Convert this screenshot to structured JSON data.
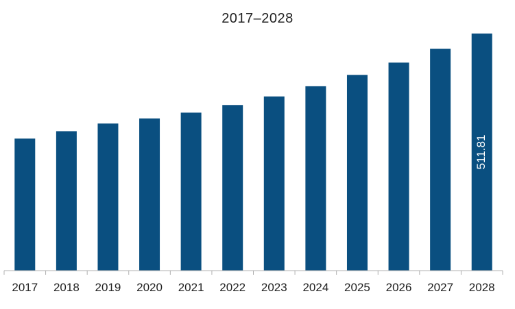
{
  "chart_data": {
    "type": "bar",
    "title": "2017–2028",
    "xlabel": "",
    "ylabel": "",
    "categories": [
      "2017",
      "2018",
      "2019",
      "2020",
      "2021",
      "2022",
      "2023",
      "2024",
      "2025",
      "2026",
      "2027",
      "2028"
    ],
    "values": [
      285.0,
      301.0,
      317.5,
      328.5,
      341.0,
      357.5,
      376.0,
      398.0,
      422.5,
      449.0,
      479.0,
      511.81
    ],
    "data_labels": [
      {
        "category": "2028",
        "text": "511.81"
      }
    ],
    "ylim": [
      0,
      525
    ],
    "grid": false,
    "legend": "none",
    "colors": {
      "bar": "#0a4f80",
      "data_label": "#ffffff",
      "axis": "#b0b0b0",
      "tick_label": "#222222"
    }
  }
}
